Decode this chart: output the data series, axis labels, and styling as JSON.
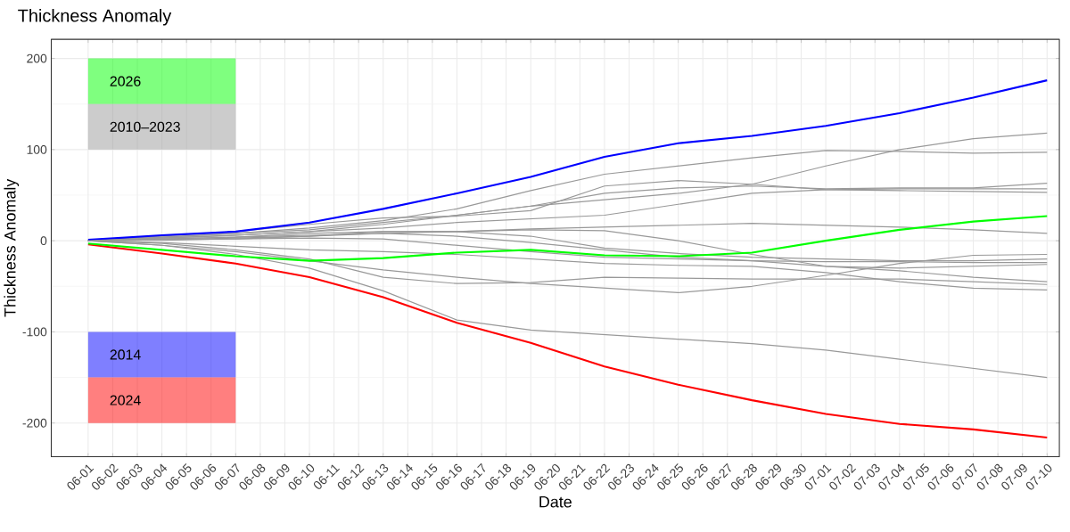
{
  "chart_data": {
    "type": "line",
    "title": "Thickness Anomaly",
    "xlabel": "Date",
    "ylabel": "Thickness Anomaly",
    "categories": [
      "06-01",
      "06-02",
      "06-03",
      "06-04",
      "06-05",
      "06-06",
      "06-07",
      "06-08",
      "06-09",
      "06-10",
      "06-11",
      "06-12",
      "06-13",
      "06-14",
      "06-15",
      "06-16",
      "06-17",
      "06-18",
      "06-19",
      "06-20",
      "06-21",
      "06-22",
      "06-23",
      "06-24",
      "06-25",
      "06-26",
      "06-27",
      "06-28",
      "06-29",
      "06-30",
      "07-01",
      "07-02",
      "07-03",
      "07-04",
      "07-05",
      "07-06",
      "07-07",
      "07-08",
      "07-09",
      "07-10"
    ],
    "ylim": [
      -237,
      221
    ],
    "yticks": [
      -200,
      -100,
      0,
      100,
      200
    ],
    "grid": true,
    "legend": "left",
    "marker": "none",
    "line_style": "solid",
    "series": [
      {
        "name": "2026",
        "color": "#00ff00",
        "x": [
          "06-01",
          "06-04",
          "06-07",
          "06-10",
          "06-13",
          "06-16",
          "06-19",
          "06-22",
          "06-25",
          "06-28",
          "07-01",
          "07-04",
          "07-07",
          "07-10"
        ],
        "values": [
          -3,
          -10,
          -17,
          -22,
          -19,
          -13,
          -10,
          -16,
          -17,
          -13,
          0,
          12,
          21,
          27
        ]
      },
      {
        "name": "2010–2023",
        "color": "#999999",
        "x": [
          "06-01",
          "06-04",
          "06-07",
          "06-10",
          "06-13",
          "06-16",
          "06-19",
          "06-22",
          "06-25",
          "06-28",
          "07-01",
          "07-04",
          "07-07",
          "07-10"
        ],
        "values": [
          0,
          3,
          6,
          10,
          18,
          28,
          38,
          45,
          52,
          62,
          82,
          100,
          112,
          118
        ]
      },
      {
        "name": "2014",
        "color": "#0000ff",
        "x": [
          "06-01",
          "06-04",
          "06-07",
          "06-10",
          "06-13",
          "06-16",
          "06-19",
          "06-22",
          "06-25",
          "06-28",
          "07-01",
          "07-04",
          "07-07",
          "07-10"
        ],
        "values": [
          1,
          6,
          10,
          20,
          35,
          52,
          70,
          92,
          107,
          115,
          126,
          140,
          157,
          176
        ]
      },
      {
        "name": "2024",
        "color": "#ff0000",
        "x": [
          "06-01",
          "06-04",
          "06-07",
          "06-10",
          "06-13",
          "06-16",
          "06-19",
          "06-22",
          "06-25",
          "06-28",
          "07-01",
          "07-04",
          "07-07",
          "07-10"
        ],
        "values": [
          -4,
          -14,
          -25,
          -40,
          -62,
          -90,
          -112,
          -138,
          -158,
          -175,
          -190,
          -201,
          -207,
          -216
        ]
      },
      {
        "color": "#999999",
        "x": [
          "06-01",
          "06-04",
          "06-07",
          "06-10",
          "06-13",
          "06-16",
          "06-19",
          "06-22",
          "06-25",
          "06-28",
          "07-01",
          "07-04",
          "07-07",
          "07-10"
        ],
        "values": [
          0,
          4,
          8,
          14,
          22,
          35,
          55,
          73,
          82,
          91,
          99,
          98,
          96,
          97
        ]
      },
      {
        "color": "#999999",
        "x": [
          "06-01",
          "06-04",
          "06-07",
          "06-10",
          "06-13",
          "06-16",
          "06-19",
          "06-22",
          "06-25",
          "06-28",
          "07-01",
          "07-04",
          "07-07",
          "07-10"
        ],
        "values": [
          0,
          5,
          10,
          18,
          25,
          27,
          33,
          60,
          66,
          62,
          56,
          55,
          54,
          53
        ]
      },
      {
        "color": "#999999",
        "x": [
          "06-01",
          "06-04",
          "06-07",
          "06-10",
          "06-13",
          "06-16",
          "06-19",
          "06-22",
          "06-25",
          "06-28",
          "07-01",
          "07-04",
          "07-07",
          "07-10"
        ],
        "values": [
          0,
          4,
          8,
          12,
          20,
          28,
          38,
          52,
          58,
          60,
          57,
          58,
          58,
          63
        ]
      },
      {
        "color": "#999999",
        "x": [
          "06-01",
          "06-04",
          "06-07",
          "06-10",
          "06-13",
          "06-16",
          "06-19",
          "06-22",
          "06-25",
          "06-28",
          "07-01",
          "07-04",
          "07-07",
          "07-10"
        ],
        "values": [
          0,
          3,
          6,
          10,
          14,
          20,
          24,
          28,
          40,
          52,
          56,
          57,
          57,
          57
        ]
      },
      {
        "color": "#999999",
        "x": [
          "06-01",
          "06-04",
          "06-07",
          "06-10",
          "06-13",
          "06-16",
          "06-19",
          "06-22",
          "06-25",
          "06-28",
          "07-01",
          "07-04",
          "07-07",
          "07-10"
        ],
        "values": [
          0,
          2,
          4,
          6,
          8,
          10,
          13,
          15,
          17,
          19,
          17,
          15,
          12,
          8
        ]
      },
      {
        "color": "#999999",
        "x": [
          "06-01",
          "06-04",
          "06-07",
          "06-10",
          "06-13",
          "06-16",
          "06-19",
          "06-22",
          "06-25",
          "06-28",
          "07-01",
          "07-04",
          "07-07",
          "07-10"
        ],
        "values": [
          0,
          2,
          4,
          8,
          10,
          10,
          12,
          11,
          0,
          -15,
          -28,
          -33,
          -40,
          -45
        ]
      },
      {
        "color": "#999999",
        "x": [
          "06-01",
          "06-04",
          "06-07",
          "06-10",
          "06-13",
          "06-16",
          "06-19",
          "06-22",
          "06-25",
          "06-28",
          "07-01",
          "07-04",
          "07-07",
          "07-10"
        ],
        "values": [
          0,
          -5,
          -12,
          -22,
          -32,
          -40,
          -47,
          -52,
          -57,
          -50,
          -38,
          -25,
          -16,
          -15
        ]
      },
      {
        "color": "#999999",
        "x": [
          "06-01",
          "06-04",
          "06-07",
          "06-10",
          "06-13",
          "06-16",
          "06-19",
          "06-22",
          "06-25",
          "06-28",
          "07-01",
          "07-04",
          "07-07",
          "07-10"
        ],
        "values": [
          0,
          -3,
          -10,
          -20,
          -40,
          -47,
          -46,
          -40,
          -41,
          -42,
          -42,
          -42,
          -45,
          -48
        ]
      },
      {
        "color": "#999999",
        "x": [
          "06-01",
          "06-04",
          "06-07",
          "06-10",
          "06-13",
          "06-16",
          "06-19",
          "06-22",
          "06-25",
          "06-28",
          "07-01",
          "07-04",
          "07-07",
          "07-10"
        ],
        "values": [
          0,
          -2,
          -6,
          -10,
          -12,
          -15,
          -20,
          -25,
          -27,
          -28,
          -35,
          -45,
          -52,
          -54
        ]
      },
      {
        "color": "#999999",
        "x": [
          "06-01",
          "06-04",
          "06-07",
          "06-10",
          "06-13",
          "06-16",
          "06-19",
          "06-22",
          "06-25",
          "06-28",
          "07-01",
          "07-04",
          "07-07",
          "07-10"
        ],
        "values": [
          0,
          1,
          2,
          5,
          8,
          5,
          -2,
          -10,
          -18,
          -22,
          -28,
          -30,
          -28,
          -26
        ]
      },
      {
        "color": "#999999",
        "x": [
          "06-01",
          "06-04",
          "06-07",
          "06-10",
          "06-13",
          "06-16",
          "06-19",
          "06-22",
          "06-25",
          "06-28",
          "07-01",
          "07-04",
          "07-07",
          "07-10"
        ],
        "values": [
          0,
          1,
          3,
          5,
          10,
          10,
          5,
          -8,
          -14,
          -18,
          -20,
          -22,
          -22,
          -20
        ]
      },
      {
        "color": "#999999",
        "x": [
          "06-01",
          "06-04",
          "06-07",
          "06-10",
          "06-13",
          "06-16",
          "06-19",
          "06-22",
          "06-25",
          "06-28",
          "07-01",
          "07-04",
          "07-07",
          "07-10"
        ],
        "values": [
          0,
          1,
          2,
          3,
          2,
          -5,
          -12,
          -18,
          -20,
          -22,
          -23,
          -23,
          -24,
          -24
        ]
      },
      {
        "color": "#999999",
        "x": [
          "06-01",
          "06-04",
          "06-07",
          "06-10",
          "06-13",
          "06-16",
          "06-19",
          "06-22",
          "06-25",
          "06-28",
          "07-01",
          "07-04",
          "07-07",
          "07-10"
        ],
        "values": [
          0,
          -5,
          -15,
          -30,
          -55,
          -87,
          -98,
          -103,
          -108,
          -113,
          -120,
          -130,
          -140,
          -150
        ]
      }
    ]
  }
}
